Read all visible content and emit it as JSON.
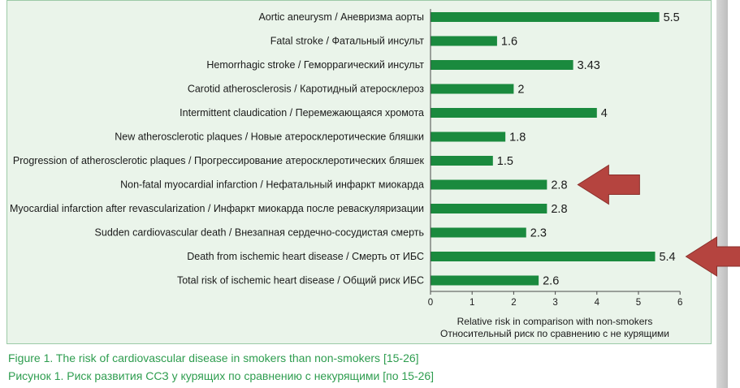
{
  "chart_data": {
    "type": "bar",
    "orientation": "horizontal",
    "categories": [
      "Aortic aneurysm / Аневризма аорты",
      "Fatal stroke / Фатальный инсульт",
      "Hemorrhagic stroke / Геморрагический инсульт",
      "Carotid atherosclerosis / Каротидный атеросклероз",
      "Intermittent claudication / Перемежающаяся хромота",
      "New atherosclerotic plaques / Новые атеросклеротические бляшки",
      "Progression of atherosclerotic plaques / Прогрессирование атеросклеротических бляшек",
      "Non-fatal myocardial infarction / Нефатальный инфаркт миокарда",
      "Myocardial infarction after revascularization / Инфаркт миокарда после реваскуляризации",
      "Sudden cardiovascular death / Внезапная сердечно-сосудистая смерть",
      "Death from ischemic heart disease / Смерть от ИБС",
      "Total risk of ischemic heart disease / Общий риск ИБС"
    ],
    "values": [
      5.5,
      1.6,
      3.43,
      2,
      4,
      1.8,
      1.5,
      2.8,
      2.8,
      2.3,
      5.4,
      2.6
    ],
    "value_labels": [
      "5.5",
      "1.6",
      "3.43",
      "2",
      "4",
      "1.8",
      "1.5",
      "2.8",
      "2.8",
      "2.3",
      "5.4",
      "2.6"
    ],
    "highlighted_categories": [
      7,
      10
    ],
    "xlim": [
      0,
      6
    ],
    "xticks": [
      0,
      1,
      2,
      3,
      4,
      5,
      6
    ],
    "xlabel_en": "Relative risk in comparison with non-smokers",
    "xlabel_ru": "Относительный риск по сравнению с не курящими",
    "bar_color": "#1a8a3e",
    "arrow_color": "#b5443f"
  },
  "caption": {
    "en": "Figure 1. The risk of cardiovascular disease in smokers than non-smokers [15-26]",
    "ru": "Рисунок 1. Риск развития ССЗ у курящих по сравнению с некурящими [по 15-26]"
  }
}
